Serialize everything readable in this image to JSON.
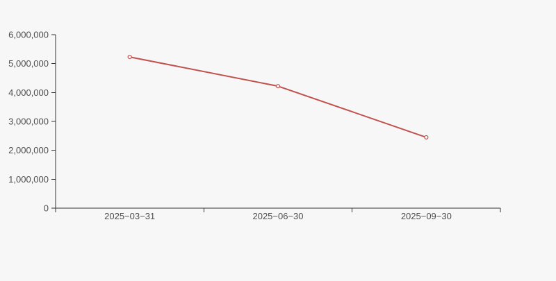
{
  "page": {
    "background_color": "#f7f7f7"
  },
  "chart_data": {
    "type": "line",
    "title": "",
    "xlabel": "",
    "ylabel": "",
    "categories": [
      "2025−03−31",
      "2025−06−30",
      "2025−09−30"
    ],
    "series": [
      {
        "name": "value",
        "values": [
          5230000,
          4220000,
          2450000
        ]
      }
    ],
    "ylim": [
      0,
      6000000
    ],
    "ytick_step": 1000000,
    "ytick_labels": [
      "0",
      "1,000,000",
      "2,000,000",
      "3,000,000",
      "4,000,000",
      "5,000,000",
      "6,000,000"
    ],
    "grid": false,
    "legend_position": "none",
    "marker": "open-circle",
    "colors": {
      "line": "#c1514d",
      "marker_fill": "#f7f7f7",
      "marker_stroke": "#c1514d",
      "axis": "#333333",
      "tick_label": "#4d4d4d",
      "background": "#f7f7f7"
    }
  }
}
